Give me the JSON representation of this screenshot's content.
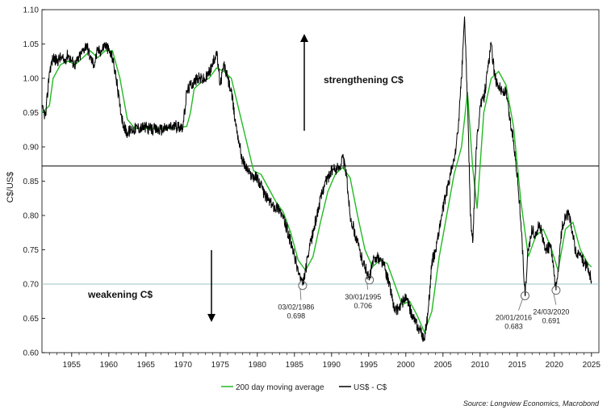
{
  "chart_data": {
    "type": "line",
    "ylabel": "C$/US$",
    "xlabel": "",
    "source": "Source: Longview Economics, Macrobond",
    "ylim": [
      0.6,
      1.1
    ],
    "xlim": [
      1951,
      2026
    ],
    "yticks": [
      0.6,
      0.65,
      0.7,
      0.75,
      0.8,
      0.85,
      0.9,
      0.95,
      1.0,
      1.05,
      1.1
    ],
    "ytick_labels": [
      "0.60",
      "0.65",
      "0.70",
      "0.75",
      "0.80",
      "0.85",
      "0.90",
      "0.95",
      "1.00",
      "1.05",
      "1.10"
    ],
    "xticks": [
      1955,
      1960,
      1965,
      1970,
      1975,
      1980,
      1985,
      1990,
      1995,
      2000,
      2005,
      2010,
      2015,
      2020,
      2025
    ],
    "xtick_labels": [
      "1955",
      "1960",
      "1965",
      "1970",
      "1975",
      "1980",
      "1985",
      "1990",
      "1995",
      "2000",
      "2005",
      "2010",
      "2015",
      "2020",
      "2025"
    ],
    "reference_lines": [
      {
        "name": "mean-line",
        "y": 0.872,
        "color": "#000000"
      },
      {
        "name": "threshold-line",
        "y": 0.7,
        "color": "#9cc3c3"
      }
    ],
    "series": [
      {
        "name": "US$ - C$",
        "color": "#000000",
        "x": [
          1951.0,
          1951.5,
          1952.0,
          1952.5,
          1953.0,
          1953.5,
          1954.0,
          1954.5,
          1955.0,
          1955.5,
          1956.0,
          1956.5,
          1957.0,
          1957.5,
          1958.0,
          1958.5,
          1959.0,
          1959.5,
          1960.0,
          1960.5,
          1961.0,
          1961.5,
          1962.0,
          1962.5,
          1963.0,
          1964.0,
          1965.0,
          1966.0,
          1967.0,
          1968.0,
          1969.0,
          1970.0,
          1970.5,
          1971.0,
          1972.0,
          1973.0,
          1974.0,
          1974.5,
          1975.0,
          1975.5,
          1976.0,
          1976.5,
          1977.0,
          1977.5,
          1978.0,
          1978.5,
          1979.0,
          1980.0,
          1981.0,
          1982.0,
          1983.0,
          1984.0,
          1985.0,
          1985.5,
          1986.1,
          1986.5,
          1987.0,
          1988.0,
          1989.0,
          1990.0,
          1991.0,
          1991.5,
          1992.0,
          1992.5,
          1993.0,
          1994.0,
          1994.5,
          1995.1,
          1995.5,
          1996.0,
          1997.0,
          1998.0,
          1998.5,
          1999.0,
          2000.0,
          2001.0,
          2002.0,
          2002.5,
          2003.0,
          2003.5,
          2004.0,
          2004.5,
          2005.0,
          2006.0,
          2006.5,
          2007.0,
          2007.5,
          2007.9,
          2008.3,
          2008.7,
          2009.0,
          2009.5,
          2010.0,
          2010.5,
          2011.0,
          2011.5,
          2012.0,
          2012.5,
          2013.0,
          2013.5,
          2014.0,
          2014.5,
          2015.0,
          2015.5,
          2016.05,
          2016.5,
          2017.0,
          2017.5,
          2018.0,
          2018.5,
          2019.0,
          2019.5,
          2020.23,
          2020.7,
          2021.0,
          2021.5,
          2022.0,
          2022.5,
          2023.0,
          2023.5,
          2024.0,
          2024.5,
          2025.0
        ],
        "values": [
          0.955,
          0.945,
          1.01,
          1.03,
          1.025,
          1.03,
          1.025,
          1.035,
          1.025,
          1.02,
          1.03,
          1.04,
          1.05,
          1.03,
          1.02,
          1.04,
          1.04,
          1.05,
          1.04,
          1.03,
          1.0,
          0.96,
          0.93,
          0.92,
          0.925,
          0.928,
          0.928,
          0.925,
          0.925,
          0.928,
          0.93,
          0.93,
          0.98,
          0.99,
          1.0,
          0.998,
          1.02,
          1.04,
          0.99,
          1.02,
          1.0,
          0.98,
          0.94,
          0.91,
          0.88,
          0.87,
          0.86,
          0.855,
          0.83,
          0.815,
          0.81,
          0.78,
          0.74,
          0.72,
          0.698,
          0.72,
          0.75,
          0.8,
          0.845,
          0.865,
          0.87,
          0.885,
          0.86,
          0.8,
          0.78,
          0.74,
          0.725,
          0.706,
          0.73,
          0.74,
          0.73,
          0.69,
          0.66,
          0.665,
          0.68,
          0.65,
          0.63,
          0.62,
          0.66,
          0.73,
          0.75,
          0.78,
          0.81,
          0.86,
          0.88,
          0.92,
          1.0,
          1.09,
          0.97,
          0.8,
          0.76,
          0.9,
          0.96,
          0.97,
          1.01,
          1.05,
          1.0,
          0.99,
          0.98,
          0.98,
          0.94,
          0.91,
          0.86,
          0.79,
          0.683,
          0.75,
          0.78,
          0.77,
          0.79,
          0.76,
          0.75,
          0.755,
          0.691,
          0.74,
          0.78,
          0.8,
          0.8,
          0.77,
          0.74,
          0.745,
          0.73,
          0.725,
          0.705
        ]
      },
      {
        "name": "200 day moving average",
        "color": "#22bb22",
        "x": [
          1951.0,
          1952.0,
          1952.5,
          1953.5,
          1954.5,
          1955.5,
          1956.5,
          1957.5,
          1958.5,
          1959.5,
          1960.5,
          1961.5,
          1962.5,
          1963.5,
          1964.5,
          1965.5,
          1966.5,
          1967.5,
          1968.5,
          1969.5,
          1970.5,
          1971.0,
          1971.5,
          1972.5,
          1973.5,
          1974.5,
          1975.5,
          1976.5,
          1977.5,
          1978.5,
          1979.5,
          1980.5,
          1981.5,
          1982.5,
          1983.5,
          1984.5,
          1985.5,
          1986.5,
          1987.5,
          1988.5,
          1989.5,
          1990.5,
          1991.5,
          1992.5,
          1993.5,
          1994.5,
          1995.5,
          1996.5,
          1997.5,
          1998.5,
          1999.5,
          2000.5,
          2001.5,
          2002.5,
          2003.5,
          2004.5,
          2005.5,
          2006.5,
          2007.5,
          2008.3,
          2009.0,
          2009.6,
          2010.5,
          2011.5,
          2012.5,
          2013.5,
          2014.5,
          2015.5,
          2016.5,
          2017.5,
          2018.5,
          2019.5,
          2020.5,
          2021.5,
          2022.5,
          2023.5,
          2024.5,
          2025.0
        ],
        "values": [
          0.95,
          0.96,
          1.0,
          1.02,
          1.025,
          1.02,
          1.03,
          1.04,
          1.03,
          1.04,
          1.04,
          1.0,
          0.94,
          0.927,
          0.927,
          0.927,
          0.927,
          0.927,
          0.927,
          0.928,
          0.93,
          0.95,
          0.985,
          0.995,
          1.0,
          1.015,
          1.01,
          1.0,
          0.955,
          0.91,
          0.865,
          0.86,
          0.84,
          0.82,
          0.805,
          0.775,
          0.735,
          0.72,
          0.74,
          0.79,
          0.835,
          0.86,
          0.87,
          0.855,
          0.8,
          0.75,
          0.725,
          0.735,
          0.73,
          0.7,
          0.67,
          0.675,
          0.655,
          0.63,
          0.66,
          0.74,
          0.8,
          0.86,
          0.9,
          0.98,
          0.87,
          0.81,
          0.95,
          1.0,
          1.01,
          0.99,
          0.93,
          0.82,
          0.74,
          0.77,
          0.78,
          0.755,
          0.72,
          0.78,
          0.79,
          0.75,
          0.73,
          0.725
        ]
      }
    ],
    "annotations": [
      {
        "date": "03/02/1986",
        "value": "0.698",
        "x": 1986.1,
        "y": 0.698
      },
      {
        "date": "30/01/1995",
        "value": "0.706",
        "x": 1995.1,
        "y": 0.706
      },
      {
        "date": "20/01/2016",
        "value": "0.683",
        "x": 2016.05,
        "y": 0.683
      },
      {
        "date": "24/03/2020",
        "value": "0.691",
        "x": 2020.23,
        "y": 0.691
      }
    ],
    "text_annotations": {
      "strengthening": "strengthening C$",
      "weakening": "weakening C$"
    },
    "legend": {
      "placement": "bottom-center",
      "items": [
        {
          "label": "200 day moving average",
          "color": "#22bb22"
        },
        {
          "label": "US$ - C$",
          "color": "#000000"
        }
      ]
    }
  }
}
